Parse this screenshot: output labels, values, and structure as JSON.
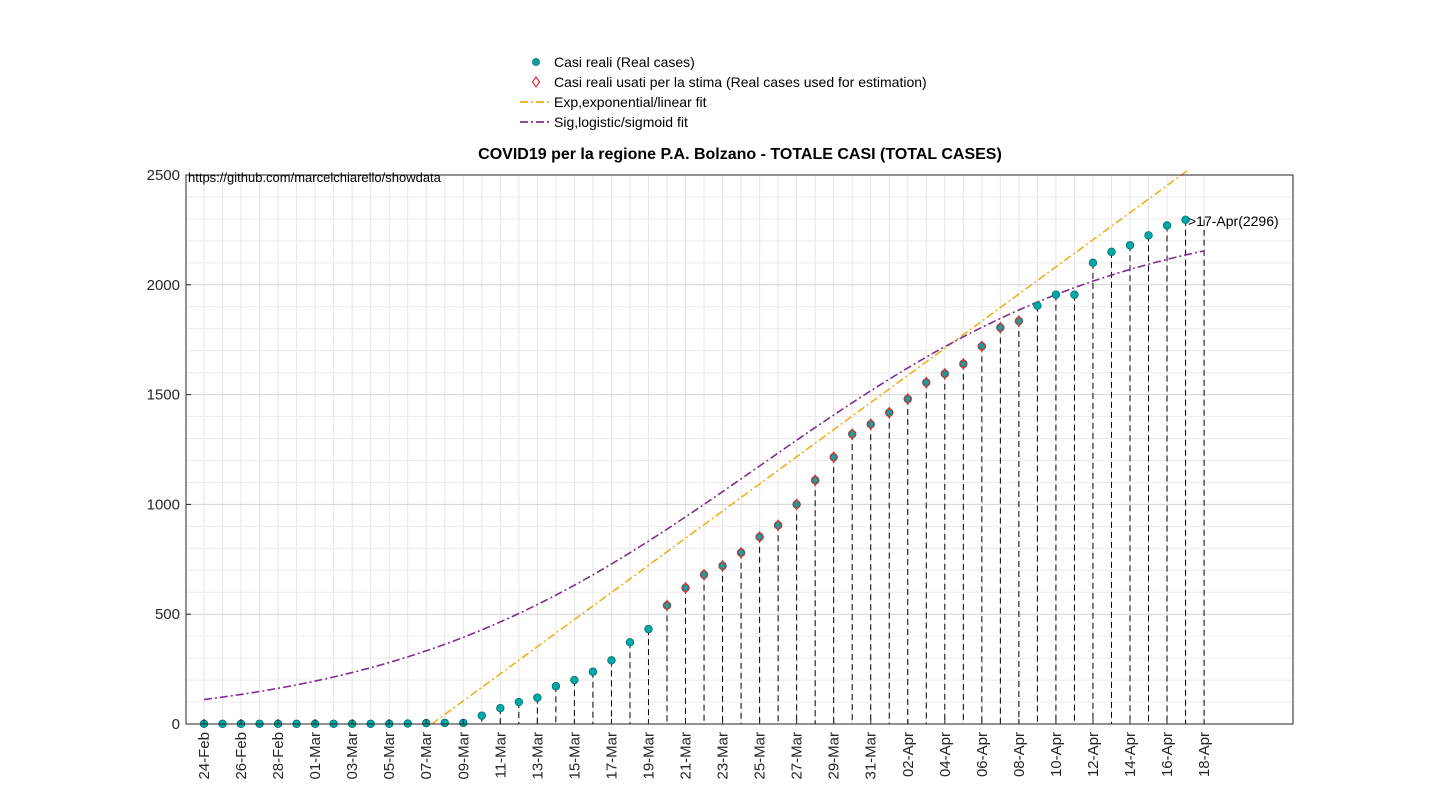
{
  "chart_data": {
    "type": "scatter",
    "title": "COVID19 per la regione P.A. Bolzano - TOTALE CASI (TOTAL CASES)",
    "source_text": "https://github.com/marcelchiarello/showdata",
    "annotation": ">17-Apr(2296)",
    "xlabel": "",
    "ylabel": "",
    "ylim": [
      0,
      2500
    ],
    "yticks": [
      0,
      500,
      1000,
      1500,
      2000,
      2500
    ],
    "xlim": [
      "24-Feb",
      "18-Apr"
    ],
    "grid": true,
    "legend_position": "top-center",
    "x_tick_labels": [
      "24-Feb",
      "26-Feb",
      "28-Feb",
      "01-Mar",
      "03-Mar",
      "05-Mar",
      "07-Mar",
      "09-Mar",
      "11-Mar",
      "13-Mar",
      "15-Mar",
      "17-Mar",
      "19-Mar",
      "21-Mar",
      "23-Mar",
      "25-Mar",
      "27-Mar",
      "29-Mar",
      "31-Mar",
      "02-Apr",
      "04-Apr",
      "06-Apr",
      "08-Apr",
      "10-Apr",
      "12-Apr",
      "14-Apr",
      "16-Apr",
      "18-Apr"
    ],
    "x": [
      "24-Feb",
      "25-Feb",
      "26-Feb",
      "27-Feb",
      "28-Feb",
      "29-Feb",
      "01-Mar",
      "02-Mar",
      "03-Mar",
      "04-Mar",
      "05-Mar",
      "06-Mar",
      "07-Mar",
      "08-Mar",
      "09-Mar",
      "10-Mar",
      "11-Mar",
      "12-Mar",
      "13-Mar",
      "14-Mar",
      "15-Mar",
      "16-Mar",
      "17-Mar",
      "18-Mar",
      "19-Mar",
      "20-Mar",
      "21-Mar",
      "22-Mar",
      "23-Mar",
      "24-Mar",
      "25-Mar",
      "26-Mar",
      "27-Mar",
      "28-Mar",
      "29-Mar",
      "30-Mar",
      "31-Mar",
      "01-Apr",
      "02-Apr",
      "03-Apr",
      "04-Apr",
      "05-Apr",
      "06-Apr",
      "07-Apr",
      "08-Apr",
      "09-Apr",
      "10-Apr",
      "11-Apr",
      "12-Apr",
      "13-Apr",
      "14-Apr",
      "15-Apr",
      "16-Apr",
      "17-Apr"
    ],
    "series": [
      {
        "name": "Casi reali (Real cases)",
        "marker": "circle",
        "color": "#00a0a0",
        "values": [
          1,
          1,
          1,
          1,
          1,
          1,
          1,
          1,
          1,
          1,
          1,
          2,
          4,
          5,
          5,
          38,
          72,
          100,
          120,
          172,
          200,
          238,
          290,
          372,
          432,
          540,
          620,
          680,
          720,
          780,
          852,
          905,
          1000,
          1110,
          1215,
          1320,
          1365,
          1418,
          1480,
          1555,
          1595,
          1640,
          1720,
          1805,
          1835,
          1905,
          1955,
          1955,
          2100,
          2150,
          2180,
          2225,
          2270,
          2296
        ]
      },
      {
        "name": "Casi reali usati per la stima (Real cases used for estimation)",
        "marker": "diamond",
        "color": "#e03030",
        "x_start": "20-Mar",
        "x_end": "08-Apr",
        "values": [
          540,
          620,
          680,
          720,
          780,
          852,
          905,
          1000,
          1110,
          1215,
          1320,
          1365,
          1418,
          1480,
          1555,
          1595,
          1640,
          1720,
          1805,
          1835
        ]
      },
      {
        "name": "Exp,exponential/linear fit",
        "color": "#edb120",
        "style": "dash-dot",
        "x": [
          12.3,
          53.1
        ],
        "values": [
          0,
          2520
        ]
      },
      {
        "name": "Sig,logistic/sigmoid fit",
        "color": "#7e2f8e",
        "style": "dash-dot",
        "logistic": {
          "L": 2350,
          "k": 0.1,
          "x0": 30,
          "x_start": 0,
          "x_end": 54
        }
      }
    ]
  }
}
